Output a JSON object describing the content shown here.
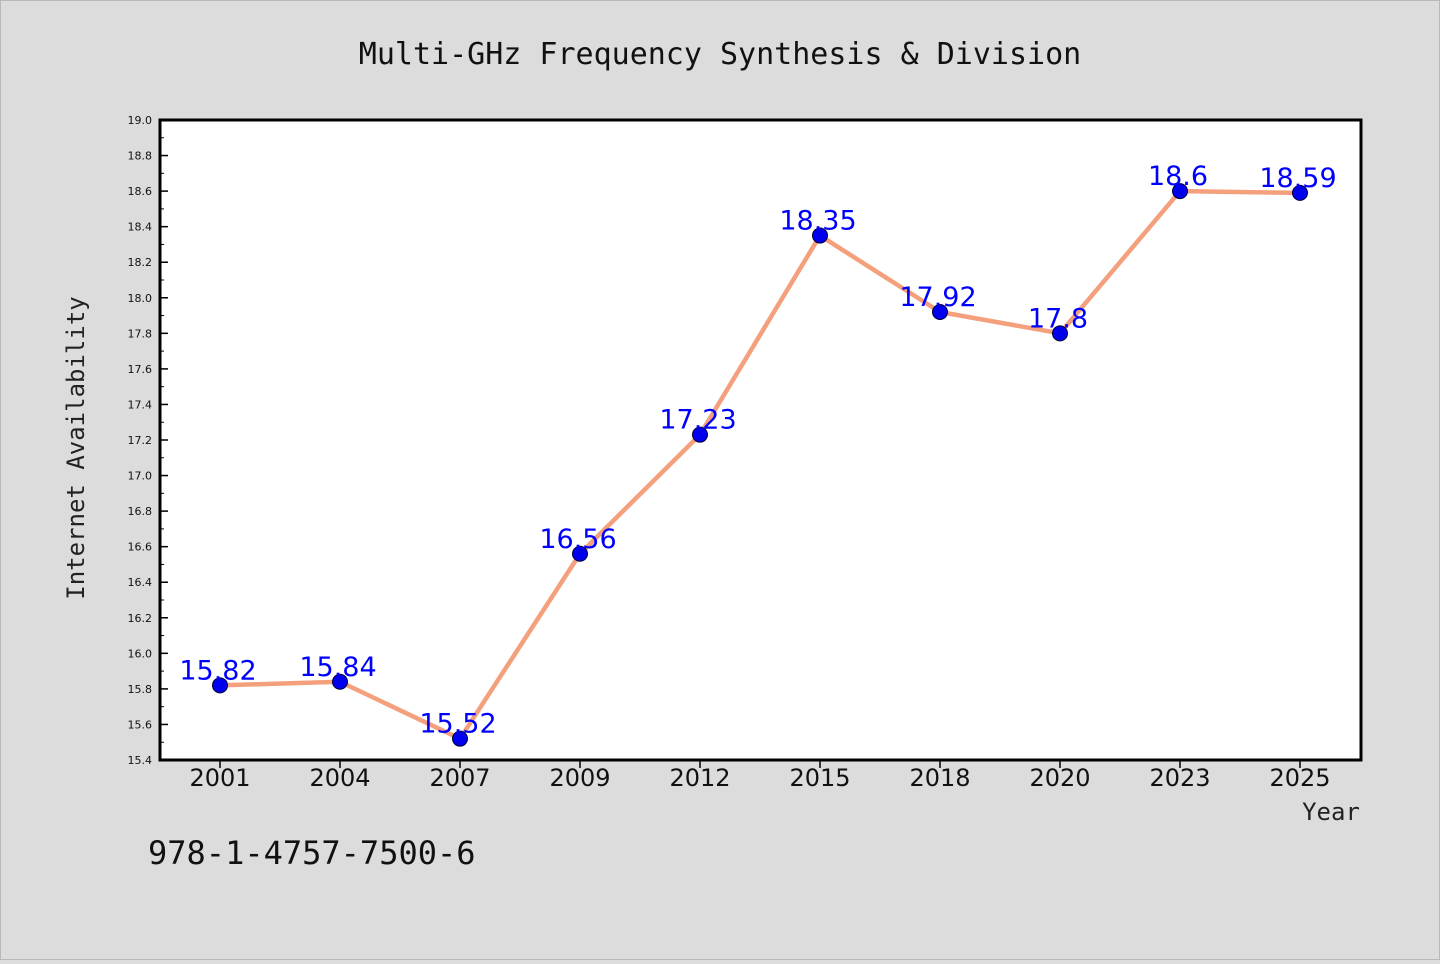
{
  "chart_data": {
    "type": "line",
    "title": "Multi-GHz Frequency Synthesis & Division",
    "xlabel": "Year",
    "ylabel": "Internet Availability",
    "categories": [
      "2001",
      "2004",
      "2007",
      "2009",
      "2012",
      "2015",
      "2018",
      "2020",
      "2023",
      "2025"
    ],
    "series": [
      {
        "values": [
          15.82,
          15.84,
          15.52,
          16.56,
          17.23,
          18.35,
          17.92,
          17.8,
          18.6,
          18.59
        ],
        "labels": [
          "15.82",
          "15.84",
          "15.52",
          "16.56",
          "17.23",
          "18.35",
          "17.92",
          "17.8",
          "18.6",
          "18.59"
        ]
      }
    ],
    "ylim": [
      15.4,
      19.0
    ],
    "yticks": [
      "15.4",
      "15.6",
      "15.8",
      "16.0",
      "16.2",
      "16.4",
      "16.6",
      "16.8",
      "17.0",
      "17.2",
      "17.4",
      "17.6",
      "17.8",
      "18.0",
      "18.2",
      "18.4",
      "18.6",
      "18.8",
      "19.0"
    ],
    "grid": false,
    "legend": "none",
    "colors": {
      "line": "#f4a07c",
      "marker": "#0000ee",
      "label": "#0000ff",
      "background": "#dcdcdc",
      "plot_area": "#ffffff"
    }
  },
  "annotation": {
    "isbn": "978-1-4757-7500-6"
  }
}
